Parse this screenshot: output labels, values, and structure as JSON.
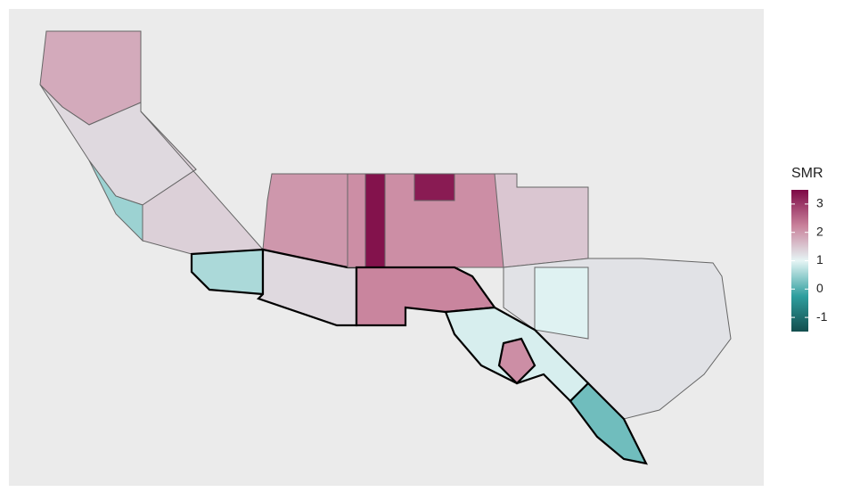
{
  "map": {
    "legend": {
      "title": "SMR",
      "lim": [
        -1.5,
        3.5
      ],
      "ticks": [
        3,
        2,
        1,
        0,
        -1
      ],
      "colors": [
        "#134e4e",
        "#2e9e9e",
        "#e6f5f5",
        "#c8809a",
        "#7d0845"
      ]
    },
    "regions": [
      {
        "value": 1.8,
        "bold": false
      },
      {
        "value": 1.3,
        "bold": false
      },
      {
        "value": 0.5,
        "bold": false
      },
      {
        "value": 1.4,
        "bold": false
      },
      {
        "value": 0.6,
        "bold": true
      },
      {
        "value": 2.0,
        "bold": false
      },
      {
        "value": 1.3,
        "bold": true
      },
      {
        "value": 2.1,
        "bold": false
      },
      {
        "value": 3.4,
        "bold": false
      },
      {
        "value": 3.3,
        "bold": false
      },
      {
        "value": 2.2,
        "bold": true
      },
      {
        "value": 1.5,
        "bold": false
      },
      {
        "value": 1.2,
        "bold": false
      },
      {
        "value": 0.95,
        "bold": false
      },
      {
        "value": 0.9,
        "bold": true
      },
      {
        "value": 0.2,
        "bold": true
      },
      {
        "value": 2.1,
        "bold": true
      }
    ]
  }
}
